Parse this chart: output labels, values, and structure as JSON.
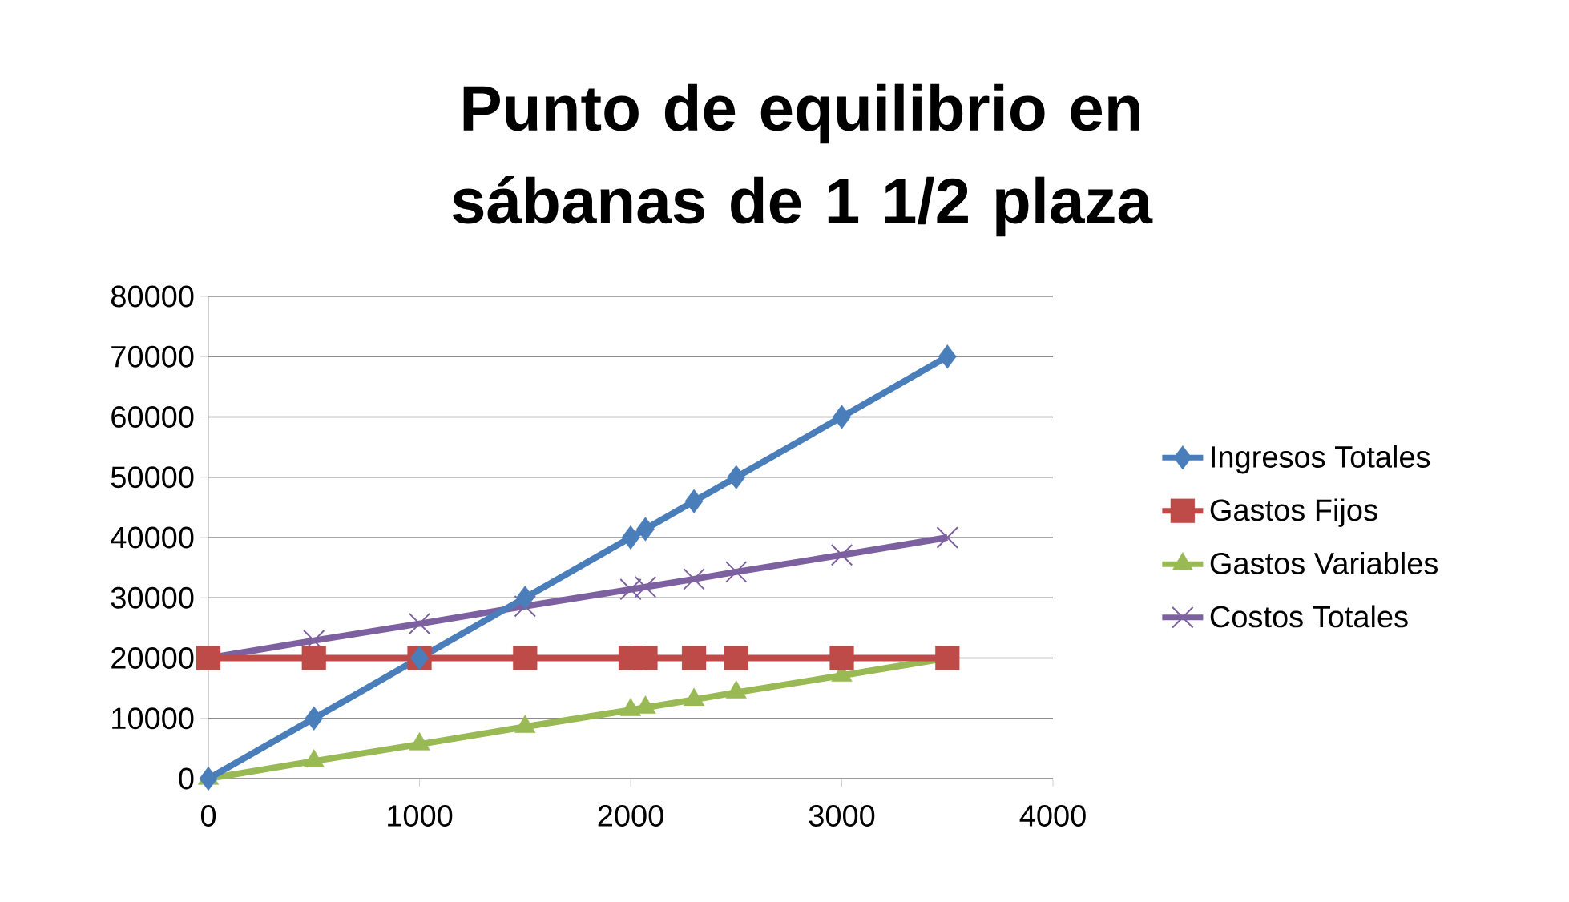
{
  "chart_data": {
    "type": "line",
    "title": "Punto de equilibrio en sábanas de 1 1/2 plaza",
    "x": [
      0,
      500,
      1000,
      1500,
      2000,
      2070,
      2300,
      2500,
      3000,
      3500
    ],
    "series": [
      {
        "name": "Ingresos Totales",
        "color": "#4a7ebb",
        "marker": "diamond",
        "values": [
          0,
          10000,
          20000,
          30000,
          40000,
          41400,
          46000,
          50000,
          60000,
          70000
        ]
      },
      {
        "name": "Gastos Fijos",
        "color": "#be4b48",
        "marker": "square",
        "values": [
          20000,
          20000,
          20000,
          20000,
          20000,
          20000,
          20000,
          20000,
          20000,
          20000
        ]
      },
      {
        "name": "Gastos Variables",
        "color": "#98b954",
        "marker": "triangle",
        "values": [
          0,
          2900,
          5700,
          8600,
          11400,
          11800,
          13100,
          14300,
          17100,
          20000
        ]
      },
      {
        "name": "Costos Totales",
        "color": "#7d60a0",
        "marker": "cross",
        "values": [
          20000,
          22900,
          25700,
          28600,
          31400,
          31800,
          33100,
          34300,
          37100,
          40000
        ]
      }
    ],
    "xlim": [
      0,
      4000
    ],
    "xticks": [
      0,
      1000,
      2000,
      3000,
      4000
    ],
    "ylim": [
      0,
      80000
    ],
    "yticks": [
      0,
      10000,
      20000,
      30000,
      40000,
      50000,
      60000,
      70000,
      80000
    ],
    "grid": "y",
    "legend": "right",
    "line_style": "solid"
  }
}
